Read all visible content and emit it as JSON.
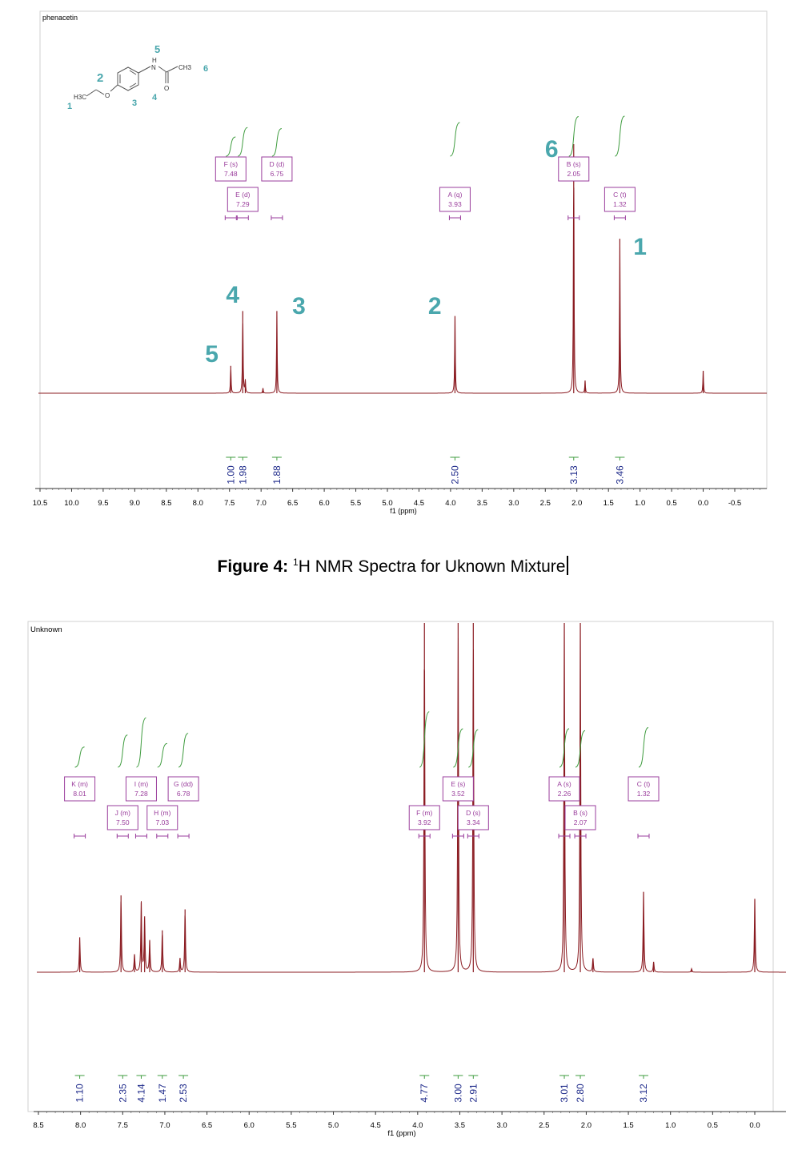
{
  "figure_caption": {
    "label": "Figure 4:",
    "sup": "1",
    "text": "H NMR Spectra for Uknown Mixture"
  },
  "colors": {
    "spectrum": "#8b1c22",
    "integral": "#3f9c3f",
    "peak_label": "#9a3d9c",
    "integral_value": "#1e2a8a",
    "molecule_number": "#4aa7ad"
  },
  "chart_data": [
    {
      "type": "line",
      "title": "phenacetin",
      "xlabel": "f1 (ppm)",
      "xlim": [
        10.5,
        -0.5
      ],
      "reversed_x": true,
      "xticks": [
        "10.5",
        "10.0",
        "9.5",
        "9.0",
        "8.5",
        "8.0",
        "7.5",
        "7.0",
        "6.5",
        "6.0",
        "5.5",
        "5.0",
        "4.5",
        "4.0",
        "3.5",
        "3.0",
        "2.5",
        "2.0",
        "1.5",
        "1.0",
        "0.5",
        "0.0",
        "-0.5"
      ],
      "molecule": {
        "atoms": [
          "H3C",
          "O",
          "N",
          "H",
          "CH3",
          "O"
        ],
        "numbers": [
          "1",
          "2",
          "3",
          "4",
          "5",
          "6"
        ]
      },
      "peaks": [
        {
          "ppm": 7.48,
          "height": 0.11
        },
        {
          "ppm": 7.29,
          "height": 0.33
        },
        {
          "ppm": 7.25,
          "height": 0.05
        },
        {
          "ppm": 6.97,
          "height": 0.02
        },
        {
          "ppm": 6.75,
          "height": 0.33
        },
        {
          "ppm": 3.93,
          "height": 0.31
        },
        {
          "ppm": 2.05,
          "height": 1.0
        },
        {
          "ppm": 1.87,
          "height": 0.05
        },
        {
          "ppm": 1.32,
          "height": 0.62
        },
        {
          "ppm": 0.0,
          "height": 0.09
        }
      ],
      "multiplets": [
        {
          "label": "F (s)",
          "shift": "7.48",
          "ppm": 7.48
        },
        {
          "label": "E (d)",
          "shift": "7.29",
          "ppm": 7.29
        },
        {
          "label": "D (d)",
          "shift": "6.75",
          "ppm": 6.75
        },
        {
          "label": "A (q)",
          "shift": "3.93",
          "ppm": 3.93
        },
        {
          "label": "B (s)",
          "shift": "2.05",
          "ppm": 2.05
        },
        {
          "label": "C (t)",
          "shift": "1.32",
          "ppm": 1.32
        }
      ],
      "integrals": [
        {
          "value": "1.00",
          "ppm": 7.48
        },
        {
          "value": "1.98",
          "ppm": 7.29
        },
        {
          "value": "1.88",
          "ppm": 6.75
        },
        {
          "value": "2.50",
          "ppm": 3.93
        },
        {
          "value": "3.13",
          "ppm": 2.05
        },
        {
          "value": "3.46",
          "ppm": 1.32
        }
      ],
      "annotations": [
        {
          "text": "5",
          "ppm": 7.78
        },
        {
          "text": "4",
          "ppm": 7.45
        },
        {
          "text": "3",
          "ppm": 6.4
        },
        {
          "text": "2",
          "ppm": 4.25
        },
        {
          "text": "6",
          "ppm": 2.4
        },
        {
          "text": "1",
          "ppm": 1.0
        }
      ]
    },
    {
      "type": "line",
      "title": "Unknown",
      "xlabel": "f1 (ppm)",
      "xlim": [
        8.5,
        0.0
      ],
      "reversed_x": true,
      "xticks": [
        "8.5",
        "8.0",
        "7.5",
        "7.0",
        "6.5",
        "6.0",
        "5.5",
        "5.0",
        "4.5",
        "4.0",
        "3.5",
        "3.0",
        "2.5",
        "2.0",
        "1.5",
        "1.0",
        "0.5",
        "0.0"
      ],
      "peaks": [
        {
          "ppm": 8.01,
          "height": 0.1
        },
        {
          "ppm": 7.52,
          "height": 0.22
        },
        {
          "ppm": 7.36,
          "height": 0.05
        },
        {
          "ppm": 7.28,
          "height": 0.2
        },
        {
          "ppm": 7.24,
          "height": 0.16
        },
        {
          "ppm": 7.18,
          "height": 0.09
        },
        {
          "ppm": 7.03,
          "height": 0.12
        },
        {
          "ppm": 6.82,
          "height": 0.04
        },
        {
          "ppm": 6.76,
          "height": 0.18
        },
        {
          "ppm": 3.92,
          "height": 1.0
        },
        {
          "ppm": 3.52,
          "height": 1.0
        },
        {
          "ppm": 3.34,
          "height": 1.0
        },
        {
          "ppm": 2.26,
          "height": 1.0
        },
        {
          "ppm": 2.07,
          "height": 1.0
        },
        {
          "ppm": 1.92,
          "height": 0.04
        },
        {
          "ppm": 1.32,
          "height": 0.23
        },
        {
          "ppm": 1.2,
          "height": 0.03
        },
        {
          "ppm": 0.75,
          "height": 0.01
        },
        {
          "ppm": 0.0,
          "height": 0.21
        }
      ],
      "multiplets": [
        {
          "label": "K (m)",
          "shift": "8.01",
          "ppm": 8.01
        },
        {
          "label": "J (m)",
          "shift": "7.50",
          "ppm": 7.5
        },
        {
          "label": "I (m)",
          "shift": "7.28",
          "ppm": 7.28
        },
        {
          "label": "H (m)",
          "shift": "7.03",
          "ppm": 7.03
        },
        {
          "label": "G (dd)",
          "shift": "6.78",
          "ppm": 6.78
        },
        {
          "label": "F (m)",
          "shift": "3.92",
          "ppm": 3.92
        },
        {
          "label": "E (s)",
          "shift": "3.52",
          "ppm": 3.52
        },
        {
          "label": "D (s)",
          "shift": "3.34",
          "ppm": 3.34
        },
        {
          "label": "A (s)",
          "shift": "2.26",
          "ppm": 2.26
        },
        {
          "label": "B (s)",
          "shift": "2.07",
          "ppm": 2.07
        },
        {
          "label": "C (t)",
          "shift": "1.32",
          "ppm": 1.32
        }
      ],
      "integrals": [
        {
          "value": "1.10",
          "ppm": 8.01
        },
        {
          "value": "2.35",
          "ppm": 7.5
        },
        {
          "value": "4.14",
          "ppm": 7.28
        },
        {
          "value": "1.47",
          "ppm": 7.03
        },
        {
          "value": "2.53",
          "ppm": 6.78
        },
        {
          "value": "4.77",
          "ppm": 3.92
        },
        {
          "value": "3.00",
          "ppm": 3.52
        },
        {
          "value": "2.91",
          "ppm": 3.34
        },
        {
          "value": "3.01",
          "ppm": 2.26
        },
        {
          "value": "2.80",
          "ppm": 2.07
        },
        {
          "value": "3.12",
          "ppm": 1.32
        }
      ]
    }
  ]
}
